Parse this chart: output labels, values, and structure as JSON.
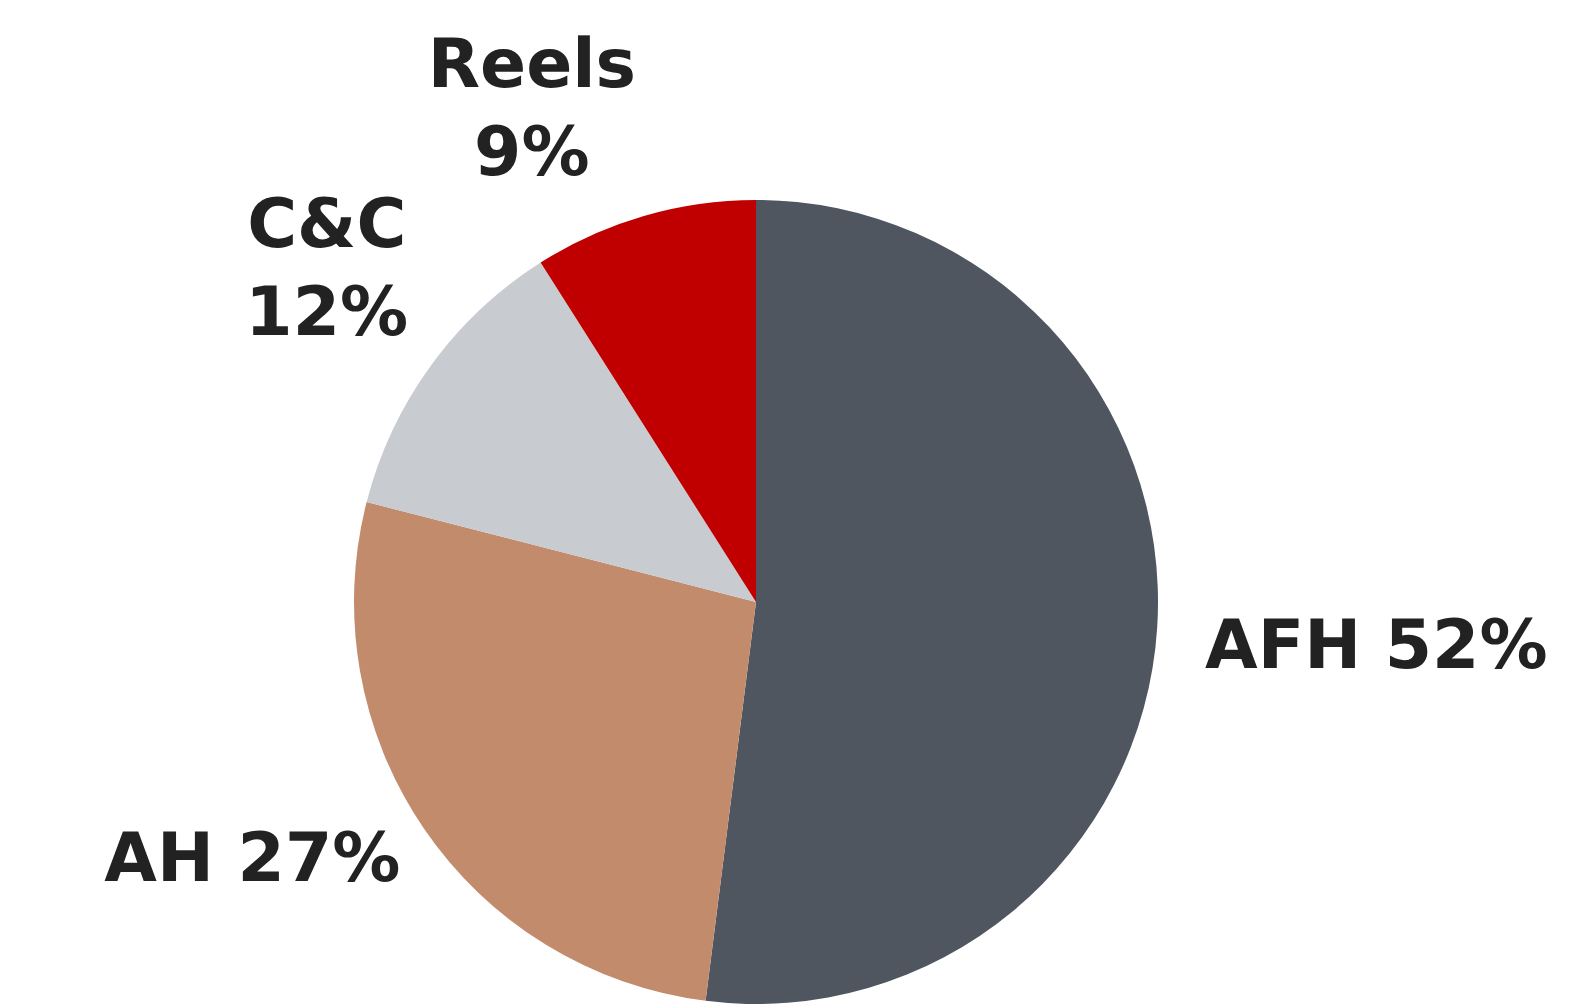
{
  "chart_data": {
    "type": "pie",
    "categories": [
      "AFH",
      "AH",
      "C&C",
      "Reels"
    ],
    "values": [
      52,
      27,
      12,
      9
    ],
    "colors": [
      "#4f5660",
      "#c28b6c",
      "#c8cbd0",
      "#c00000"
    ],
    "value_labels": [
      "52%",
      "27%",
      "12%",
      "9%"
    ]
  }
}
